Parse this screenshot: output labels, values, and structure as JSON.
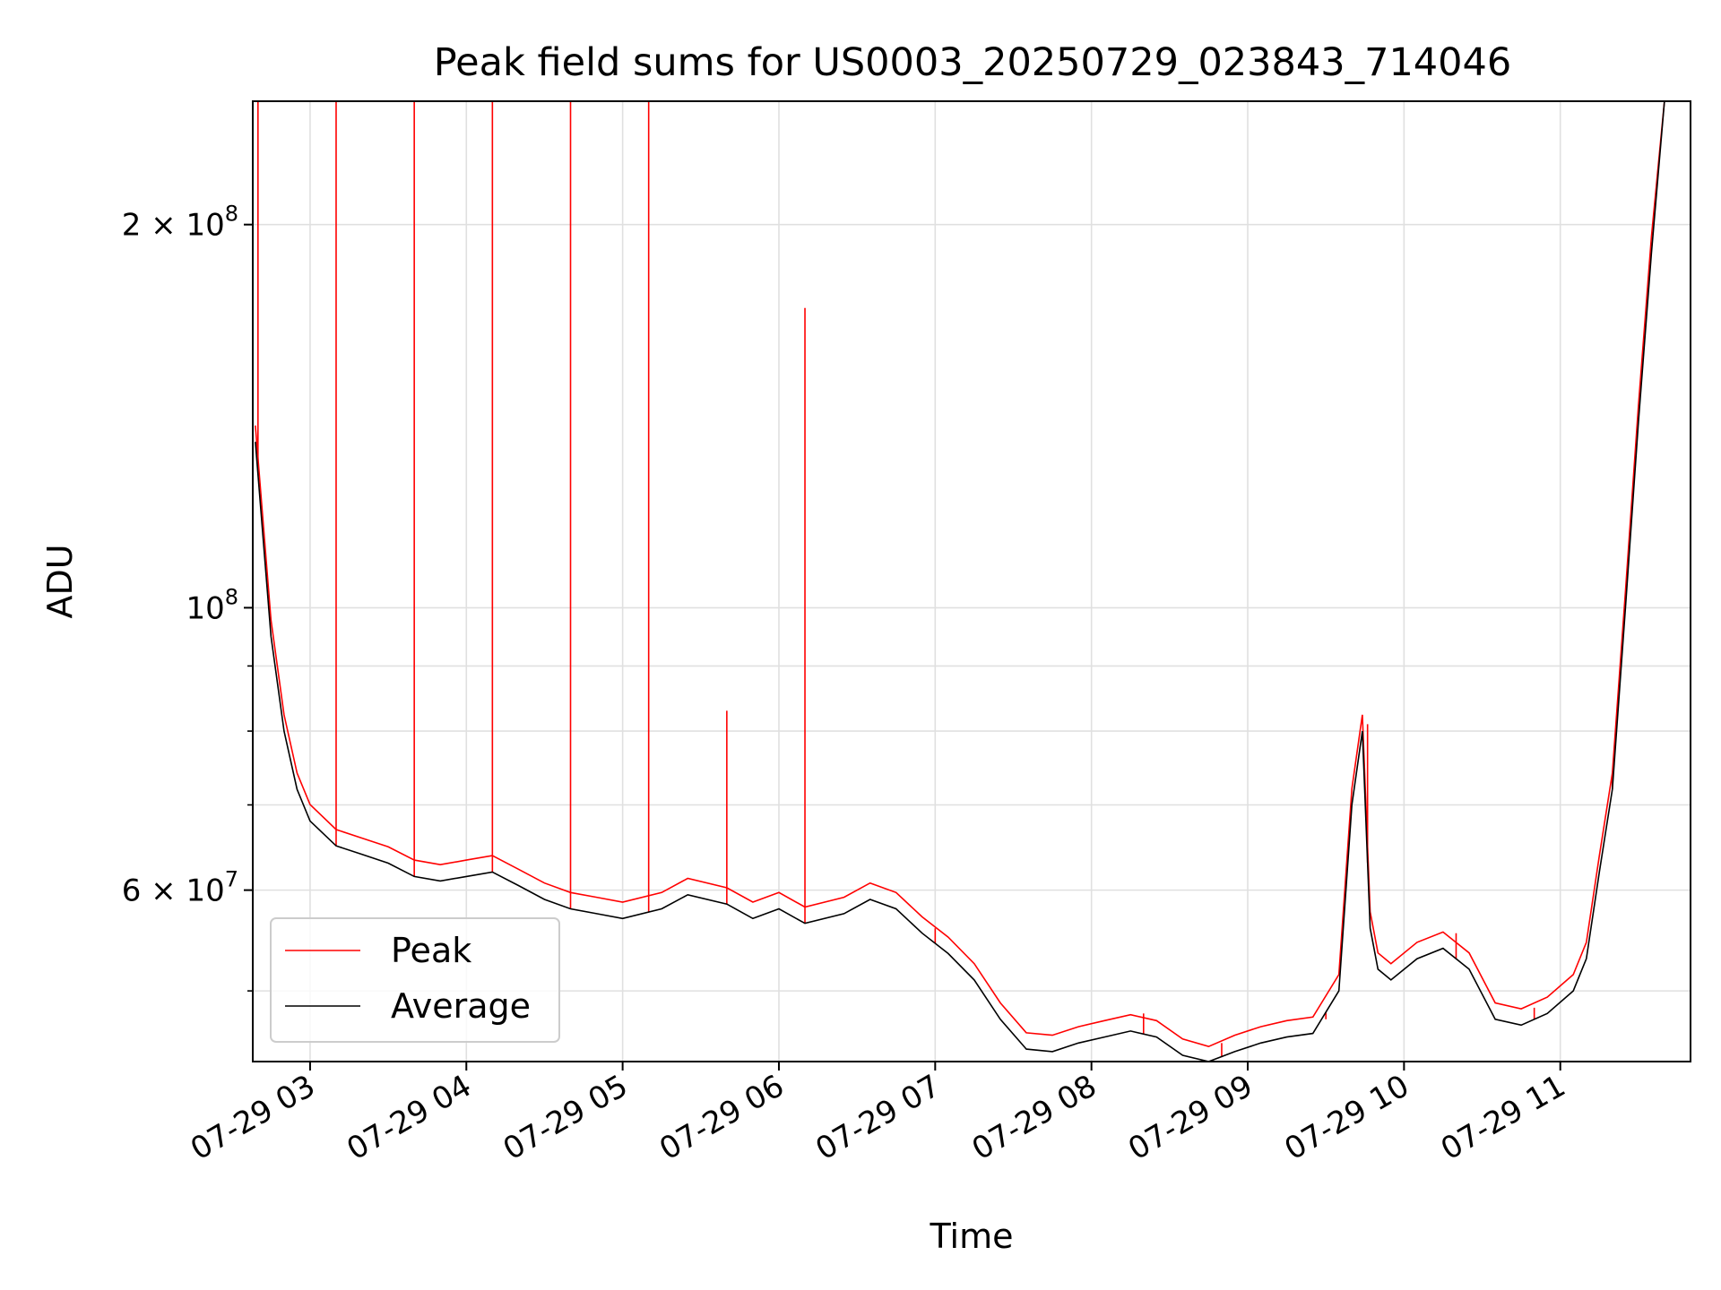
{
  "chart_data": {
    "type": "line",
    "title": "Peak field sums for US0003_20250729_023843_714046",
    "xlabel": "Time",
    "ylabel": "ADU",
    "yscale": "log",
    "ylim": [
      44000000,
      250000000
    ],
    "xlim": [
      "2025-07-29 02:38",
      "2025-07-29 11:50"
    ],
    "grid": true,
    "legend_position": "lower-left",
    "x_tick_labels": [
      "07-29 03",
      "07-29 04",
      "07-29 05",
      "07-29 06",
      "07-29 07",
      "07-29 08",
      "07-29 09",
      "07-29 10",
      "07-29 11"
    ],
    "x_ticks": [
      "2025-07-29 03:00",
      "2025-07-29 04:00",
      "2025-07-29 05:00",
      "2025-07-29 06:00",
      "2025-07-29 07:00",
      "2025-07-29 08:00",
      "2025-07-29 09:00",
      "2025-07-29 10:00",
      "2025-07-29 11:00"
    ],
    "y_major_ticks": [
      {
        "value": 60000000,
        "mantissa": "6",
        "exponent": "7"
      },
      {
        "value": 100000000,
        "mantissa": "",
        "exponent": "8"
      },
      {
        "value": 200000000,
        "mantissa": "2",
        "exponent": "8"
      }
    ],
    "y_minor_ticks": [
      50000000,
      70000000,
      80000000,
      90000000
    ],
    "series": [
      {
        "name": "Average",
        "color": "#000000",
        "x": [
          "2025-07-29 02:39",
          "2025-07-29 02:45",
          "2025-07-29 02:50",
          "2025-07-29 02:55",
          "2025-07-29 03:00",
          "2025-07-29 03:10",
          "2025-07-29 03:20",
          "2025-07-29 03:30",
          "2025-07-29 03:40",
          "2025-07-29 03:50",
          "2025-07-29 04:00",
          "2025-07-29 04:10",
          "2025-07-29 04:20",
          "2025-07-29 04:30",
          "2025-07-29 04:40",
          "2025-07-29 04:50",
          "2025-07-29 05:00",
          "2025-07-29 05:15",
          "2025-07-29 05:25",
          "2025-07-29 05:40",
          "2025-07-29 05:50",
          "2025-07-29 06:00",
          "2025-07-29 06:10",
          "2025-07-29 06:25",
          "2025-07-29 06:35",
          "2025-07-29 06:45",
          "2025-07-29 06:55",
          "2025-07-29 07:05",
          "2025-07-29 07:15",
          "2025-07-29 07:25",
          "2025-07-29 07:35",
          "2025-07-29 07:45",
          "2025-07-29 07:55",
          "2025-07-29 08:05",
          "2025-07-29 08:15",
          "2025-07-29 08:25",
          "2025-07-29 08:35",
          "2025-07-29 08:45",
          "2025-07-29 08:55",
          "2025-07-29 09:05",
          "2025-07-29 09:15",
          "2025-07-29 09:25",
          "2025-07-29 09:35",
          "2025-07-29 09:40",
          "2025-07-29 09:44",
          "2025-07-29 09:47",
          "2025-07-29 09:50",
          "2025-07-29 09:55",
          "2025-07-29 10:05",
          "2025-07-29 10:15",
          "2025-07-29 10:25",
          "2025-07-29 10:35",
          "2025-07-29 10:45",
          "2025-07-29 10:55",
          "2025-07-29 11:05",
          "2025-07-29 11:10",
          "2025-07-29 11:15",
          "2025-07-29 11:20",
          "2025-07-29 11:25",
          "2025-07-29 11:30",
          "2025-07-29 11:35",
          "2025-07-29 11:40",
          "2025-07-29 11:45",
          "2025-07-29 11:49"
        ],
        "values": [
          135000000,
          95000000,
          80000000,
          72000000,
          68000000,
          65000000,
          64000000,
          63000000,
          61500000,
          61000000,
          61500000,
          62000000,
          60500000,
          59000000,
          58000000,
          57500000,
          57000000,
          58000000,
          59500000,
          58500000,
          57000000,
          58000000,
          56500000,
          57500000,
          59000000,
          58000000,
          55500000,
          53500000,
          51000000,
          47500000,
          45000000,
          44800000,
          45500000,
          46000000,
          46500000,
          46000000,
          44500000,
          43900000,
          44800000,
          45500000,
          46000000,
          46300000,
          50000000,
          70000000,
          80000000,
          56000000,
          52000000,
          51000000,
          53000000,
          54000000,
          52000000,
          47500000,
          47000000,
          48000000,
          50000000,
          53000000,
          62000000,
          72000000,
          100000000,
          140000000,
          190000000,
          250000000,
          250000000,
          250000000
        ]
      },
      {
        "name": "Peak",
        "color": "#ff0000",
        "x": [
          "2025-07-29 02:40",
          "2025-07-29 03:10",
          "2025-07-29 03:40",
          "2025-07-29 04:10",
          "2025-07-29 04:40",
          "2025-07-29 05:10",
          "2025-07-29 05:40",
          "2025-07-29 06:10",
          "2025-07-29 07:00",
          "2025-07-29 08:20",
          "2025-07-29 08:50",
          "2025-07-29 09:30",
          "2025-07-29 09:46",
          "2025-07-29 10:20",
          "2025-07-29 10:50",
          "2025-07-29 11:20"
        ],
        "values": [
          250000000,
          250000000,
          250000000,
          250000000,
          250000000,
          250000000,
          83000000,
          172000000,
          56000000,
          48000000,
          45500000,
          47500000,
          81000000,
          55500000,
          48500000,
          74000000
        ]
      }
    ]
  }
}
